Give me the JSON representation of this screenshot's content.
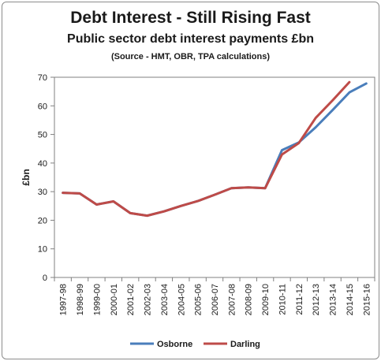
{
  "chart_data": {
    "type": "line",
    "title": "Debt Interest - Still Rising Fast",
    "subtitle": "Public sector debt interest payments £bn",
    "source": "(Source - HMT, OBR, TPA calculations)",
    "ylabel": "£bn",
    "xlabel": "",
    "ylim": [
      0,
      70
    ],
    "yticks": [
      0,
      10,
      20,
      30,
      40,
      50,
      60,
      70
    ],
    "grid": false,
    "legend": "bottom",
    "categories": [
      "1997-98",
      "1998-99",
      "1999-00",
      "2000-01",
      "2001-02",
      "2002-03",
      "2003-04",
      "2004-05",
      "2005-06",
      "2006-07",
      "2007-08",
      "2008-09",
      "2009-10",
      "2010-11",
      "2011-12",
      "2012-13",
      "2013-14",
      "2014-15",
      "2015-16"
    ],
    "series": [
      {
        "name": "Osborne",
        "color": "#4a7ebb",
        "values": [
          29.6,
          29.4,
          25.5,
          26.6,
          22.5,
          21.6,
          23.1,
          25.0,
          26.7,
          28.9,
          31.2,
          31.5,
          31.2,
          44.5,
          47.2,
          52.5,
          58.5,
          64.7,
          67.8
        ]
      },
      {
        "name": "Darling",
        "color": "#be4b48",
        "values": [
          29.6,
          29.4,
          25.5,
          26.6,
          22.5,
          21.6,
          23.1,
          25.0,
          26.7,
          28.9,
          31.2,
          31.5,
          31.2,
          43.0,
          47.0,
          55.8,
          61.9,
          68.3,
          null
        ]
      }
    ]
  }
}
